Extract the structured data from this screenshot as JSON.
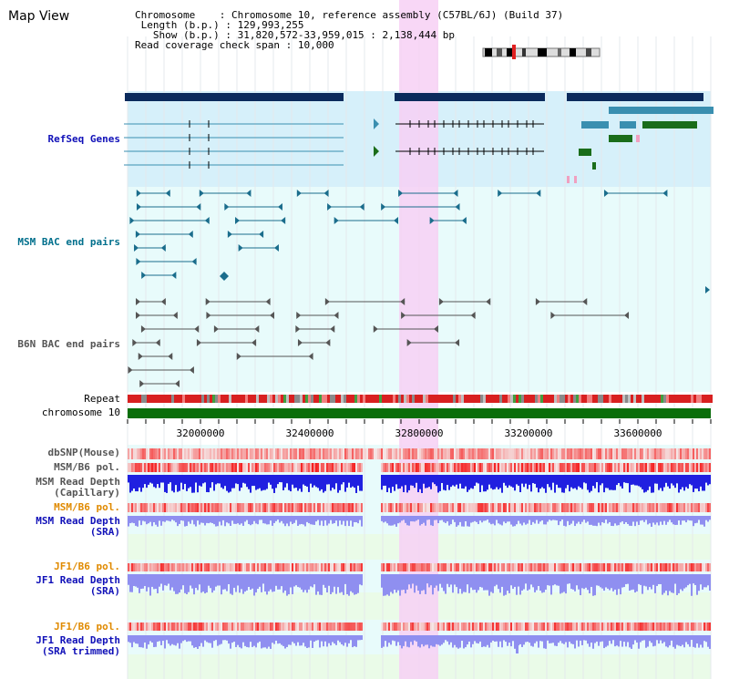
{
  "page_title": "Map View",
  "info": {
    "chromosome_label": "Chromosome",
    "chromosome_value": "Chromosome 10, reference assembly (C57BL/6J) (Build 37)",
    "length_label": "Length (b.p.)",
    "length_value": "129,993,255",
    "show_label": "Show (b.p.)",
    "show_value": "31,820,572-33,959,015 : 2,138,444 bp",
    "coverage_label": "Read coverage check span",
    "coverage_value": "10,000"
  },
  "tracks": {
    "refseq": "RefSeq Genes",
    "msm_bac": "MSM BAC end pairs",
    "b6n_bac": "B6N BAC end pairs",
    "repeat": "Repeat",
    "chromosome": "chromosome 10",
    "dbsnp": "dbSNP(Mouse)",
    "msm_b6_pol_1": "MSM/B6 pol.",
    "msm_read_depth_cap_1": "MSM Read Depth",
    "msm_read_depth_cap_2": "(Capillary)",
    "msm_b6_pol_2": "MSM/B6 pol.",
    "msm_read_depth_sra_1": "MSM Read Depth",
    "msm_read_depth_sra_2": "(SRA)",
    "jf1_b6_pol_1": "JF1/B6 pol.",
    "jf1_read_depth_1": "JF1 Read Depth",
    "jf1_read_depth_2": "(SRA)",
    "jf1_b6_pol_2": "JF1/B6 pol.",
    "jf1_read_depth_trim_1": "JF1 Read Depth",
    "jf1_read_depth_trim_2": "(SRA trimmed)"
  },
  "ruler": {
    "ticks": [
      "32000000",
      "32400000",
      "32800000",
      "33200000",
      "33600000"
    ]
  },
  "colors": {
    "refseq_bg": "#d6f0fa",
    "track_bg": "#e8fbfb",
    "highlight": "#f7d0f4",
    "gene_dark": "#0b2a5c",
    "gene_green": "#1a6d1a",
    "gene_teal": "#3a8fb0",
    "msm_bac": "#1a6d8c",
    "b6n_bac": "#555555",
    "chromosome_bar": "#0a6e0a",
    "depth_blue": "#2020e0",
    "depth_light": "#8f8ff0"
  }
}
